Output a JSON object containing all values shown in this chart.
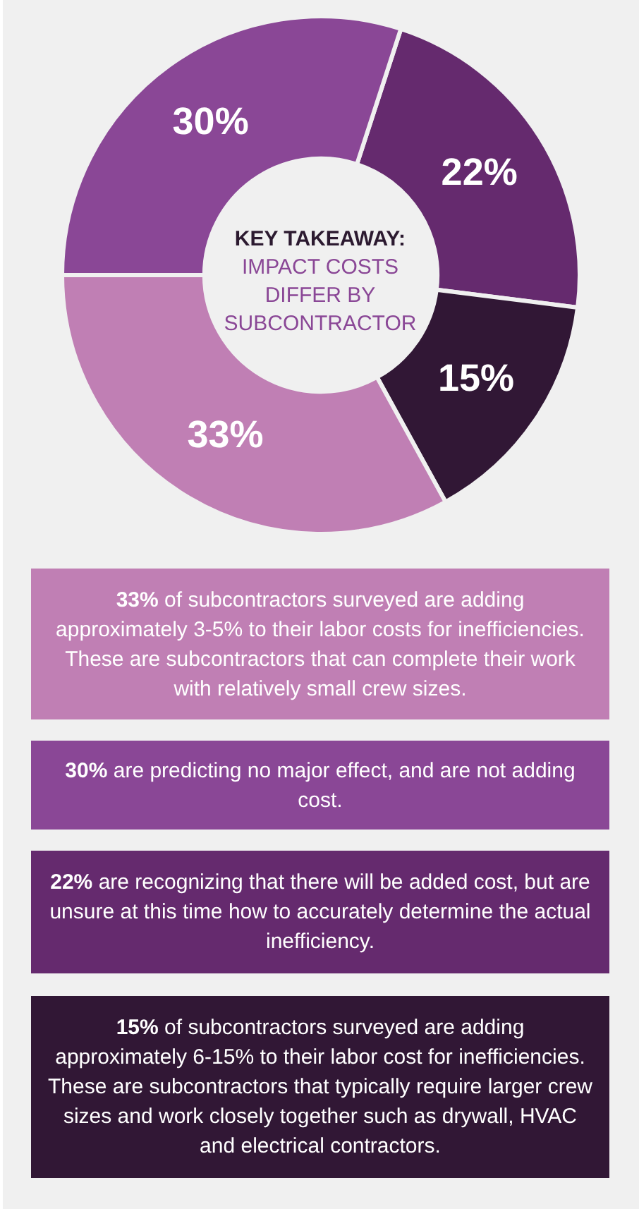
{
  "chart_data": {
    "type": "donut",
    "title": "KEY TAKEAWAY:",
    "subtitle": "IMPACT COSTS DIFFER BY SUBCONTRACTOR",
    "categories": [
      null,
      null,
      null,
      null
    ],
    "values": [
      22,
      15,
      33,
      30
    ],
    "value_labels": [
      "22%",
      "15%",
      "33%",
      "30%"
    ],
    "colors": [
      "#652a6e",
      "#311735",
      "#c07fb4",
      "#8a4796"
    ],
    "legend": false,
    "annotations": [
      "33% of subcontractors surveyed are adding approximately 3-5% to their labor costs for inefficiencies. These are subcontractors that can complete their work with relatively small crew sizes.",
      "30% are predicting no major effect, and are not adding cost.",
      "22% are recognizing that there will be added cost, but are unsure at this time how to accurately determine the actual inefficiency.",
      "15% of subcontractors surveyed are adding approximately 6-15% to their labor cost for inefficiencies. These are subcontractors that typically require larger crew sizes and work closely together such as drywall, HVAC and electrical contractors."
    ]
  }
}
